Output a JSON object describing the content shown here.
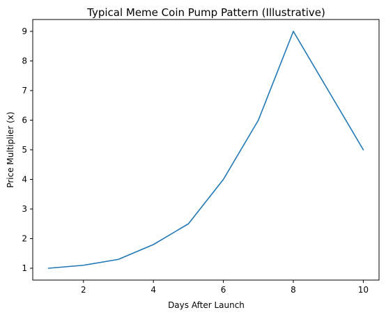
{
  "chart_data": {
    "type": "line",
    "title": "Typical Meme Coin Pump Pattern (Illustrative)",
    "xlabel": "Days After Launch",
    "ylabel": "Price Multiplier (x)",
    "x": [
      1,
      2,
      3,
      4,
      5,
      6,
      7,
      8,
      9,
      10
    ],
    "series": [
      {
        "values": [
          1,
          1.1,
          1.3,
          1.8,
          2.5,
          4,
          6,
          9,
          7,
          5
        ],
        "color": "#1f77b4"
      }
    ],
    "xlim": [
      0.55,
      10.45
    ],
    "ylim": [
      0.6,
      9.4
    ],
    "xticks": [
      2,
      4,
      6,
      8,
      10
    ],
    "yticks": [
      1,
      2,
      3,
      4,
      5,
      6,
      7,
      8,
      9
    ],
    "grid": false,
    "legend": false
  }
}
